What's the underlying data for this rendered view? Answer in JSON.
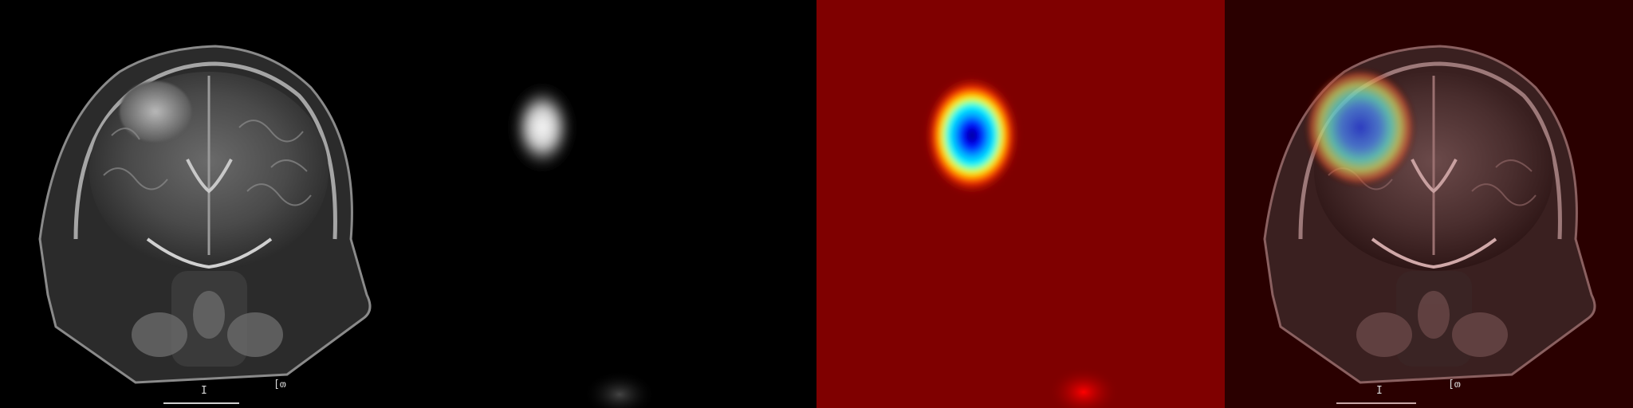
{
  "panels": [
    {
      "name": "mri-coronal-slice",
      "description_role": "original"
    },
    {
      "name": "grayscale-activation-map",
      "description_role": "attention"
    },
    {
      "name": "jet-heatmap",
      "description_role": "colormap"
    },
    {
      "name": "heatmap-overlay",
      "description_role": "overlay"
    }
  ],
  "annotations": {
    "marker_i": "I",
    "marker_bracket": "[თ"
  },
  "colors": {
    "background": "#000000",
    "jet_low": "#7f0000",
    "jet_high": "#00007f",
    "overlay_tint": "#3a0000"
  }
}
